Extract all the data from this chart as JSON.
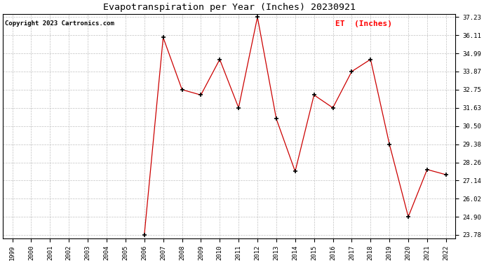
{
  "title": "Evapotranspiration per Year (Inches) 20230921",
  "copyright": "Copyright 2023 Cartronics.com",
  "legend_label": "ET  (Inches)",
  "years": [
    1999,
    2000,
    2001,
    2002,
    2003,
    2004,
    2005,
    2006,
    2007,
    2008,
    2009,
    2010,
    2011,
    2012,
    2013,
    2014,
    2015,
    2016,
    2017,
    2018,
    2019,
    2020,
    2021,
    2022
  ],
  "values": [
    null,
    null,
    null,
    null,
    null,
    null,
    null,
    23.78,
    35.97,
    32.75,
    32.42,
    34.62,
    31.63,
    37.23,
    30.95,
    27.7,
    32.42,
    31.63,
    33.87,
    34.62,
    29.38,
    24.9,
    27.82,
    27.5
  ],
  "line_color": "#cc0000",
  "marker_color": "#000000",
  "background_color": "#ffffff",
  "grid_color": "#bbbbbb",
  "ylim_min": 23.78,
  "ylim_max": 37.23,
  "yticks": [
    23.78,
    24.9,
    26.02,
    27.14,
    28.26,
    29.38,
    30.5,
    31.63,
    32.75,
    33.87,
    34.99,
    36.11,
    37.23
  ],
  "title_fontsize": 9.5,
  "copyright_fontsize": 6.5,
  "legend_fontsize": 8,
  "tick_fontsize": 6.5
}
